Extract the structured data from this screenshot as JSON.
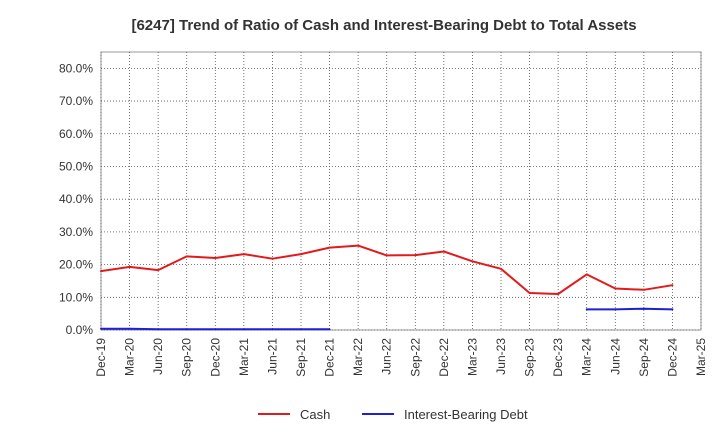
{
  "chart_data": {
    "type": "line",
    "title": "[6247]  Trend of Ratio of Cash and Interest-Bearing Debt to Total Assets",
    "xlabel": "",
    "ylabel": "",
    "ylim": [
      0,
      85
    ],
    "y_ticks": [
      0,
      10,
      20,
      30,
      40,
      50,
      60,
      70,
      80
    ],
    "y_tick_labels": [
      "0.0%",
      "10.0%",
      "20.0%",
      "30.0%",
      "40.0%",
      "50.0%",
      "60.0%",
      "70.0%",
      "80.0%"
    ],
    "x_tick_labels": [
      "Dec-19",
      "Mar-20",
      "Jun-20",
      "Sep-20",
      "Dec-20",
      "Mar-21",
      "Jun-21",
      "Sep-21",
      "Dec-21",
      "Mar-22",
      "Jun-22",
      "Sep-22",
      "Dec-22",
      "Mar-23",
      "Jun-23",
      "Sep-23",
      "Dec-23",
      "Mar-24",
      "Jun-24",
      "Sep-24",
      "Dec-24",
      "Mar-25"
    ],
    "grid": true,
    "legend_position": "bottom",
    "series": [
      {
        "name": "Cash",
        "color": "#e31a1c",
        "values": [
          18.0,
          19.3,
          18.3,
          22.5,
          22.0,
          23.2,
          21.8,
          23.2,
          25.2,
          25.8,
          22.8,
          22.9,
          24.0,
          21.0,
          18.7,
          11.3,
          11.0,
          17.0,
          12.7,
          12.3,
          13.7,
          null
        ]
      },
      {
        "name": "Interest-Bearing Debt",
        "color": "#1f1fd6",
        "values": [
          0.4,
          0.4,
          0.2,
          0.2,
          0.2,
          0.2,
          0.2,
          0.2,
          0.2,
          null,
          null,
          null,
          null,
          null,
          null,
          null,
          null,
          6.3,
          6.3,
          6.5,
          6.3,
          null
        ]
      }
    ]
  }
}
